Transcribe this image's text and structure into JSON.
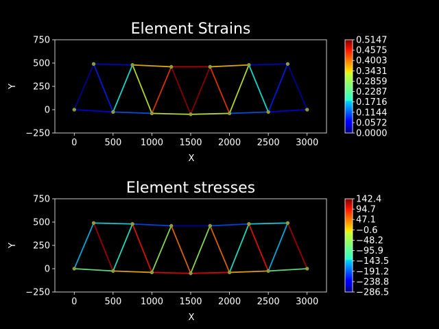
{
  "chart_data": [
    {
      "type": "line",
      "title": "Element Strains",
      "xlabel": "X",
      "ylabel": "Y",
      "xlim": [
        -250,
        3250
      ],
      "ylim": [
        -250,
        750
      ],
      "x_ticks": [
        "0",
        "500",
        "1000",
        "1500",
        "2000",
        "2500",
        "3000"
      ],
      "y_ticks": [
        "−250",
        "0",
        "250",
        "500",
        "750"
      ],
      "x_tick_values": [
        0,
        500,
        1000,
        1500,
        2000,
        2500,
        3000
      ],
      "y_tick_values": [
        -250,
        0,
        250,
        500,
        750
      ],
      "colormap": "jet",
      "colorbar_range": [
        0,
        0.5147
      ],
      "colorbar_ticks": [
        "0.5147",
        "0.4575",
        "0.4003",
        "0.3431",
        "0.2859",
        "0.2287",
        "0.1716",
        "0.1144",
        "0.0572",
        "0.0000"
      ],
      "nodes": [
        [
          0,
          0
        ],
        [
          500,
          -25
        ],
        [
          1000,
          -40
        ],
        [
          1500,
          -50
        ],
        [
          2000,
          -40
        ],
        [
          2500,
          -25
        ],
        [
          3000,
          0
        ],
        [
          250,
          490
        ],
        [
          750,
          480
        ],
        [
          1250,
          460
        ],
        [
          1750,
          460
        ],
        [
          2250,
          480
        ],
        [
          2750,
          490
        ]
      ],
      "elements": [
        {
          "n": [
            0,
            1
          ],
          "v": 0.06
        },
        {
          "n": [
            1,
            2
          ],
          "v": 0.11
        },
        {
          "n": [
            2,
            3
          ],
          "v": 0.3
        },
        {
          "n": [
            3,
            4
          ],
          "v": 0.3
        },
        {
          "n": [
            4,
            5
          ],
          "v": 0.11
        },
        {
          "n": [
            5,
            6
          ],
          "v": 0.06
        },
        {
          "n": [
            7,
            8
          ],
          "v": 0.05
        },
        {
          "n": [
            8,
            9
          ],
          "v": 0.35
        },
        {
          "n": [
            9,
            10
          ],
          "v": 0.48
        },
        {
          "n": [
            10,
            11
          ],
          "v": 0.35
        },
        {
          "n": [
            11,
            12
          ],
          "v": 0.05
        },
        {
          "n": [
            0,
            7
          ],
          "v": 0.02
        },
        {
          "n": [
            7,
            1
          ],
          "v": 0.08
        },
        {
          "n": [
            1,
            8
          ],
          "v": 0.2
        },
        {
          "n": [
            8,
            2
          ],
          "v": 0.3
        },
        {
          "n": [
            2,
            9
          ],
          "v": 0.42
        },
        {
          "n": [
            9,
            3
          ],
          "v": 0.5
        },
        {
          "n": [
            3,
            10
          ],
          "v": 0.5
        },
        {
          "n": [
            10,
            4
          ],
          "v": 0.42
        },
        {
          "n": [
            4,
            11
          ],
          "v": 0.3
        },
        {
          "n": [
            11,
            5
          ],
          "v": 0.2
        },
        {
          "n": [
            5,
            12
          ],
          "v": 0.08
        },
        {
          "n": [
            12,
            6
          ],
          "v": 0.02
        }
      ]
    },
    {
      "type": "line",
      "title": "Element stresses",
      "xlabel": "X",
      "ylabel": "Y",
      "xlim": [
        -250,
        3250
      ],
      "ylim": [
        -250,
        750
      ],
      "x_ticks": [
        "0",
        "500",
        "1000",
        "1500",
        "2000",
        "2500",
        "3000"
      ],
      "y_ticks": [
        "−250",
        "0",
        "250",
        "500",
        "750"
      ],
      "x_tick_values": [
        0,
        500,
        1000,
        1500,
        2000,
        2500,
        3000
      ],
      "y_tick_values": [
        -250,
        0,
        250,
        500,
        750
      ],
      "colormap": "jet",
      "colorbar_range": [
        -286.5,
        142.4
      ],
      "colorbar_ticks": [
        "142.4",
        "94.7",
        "47.1",
        "−0.6",
        "−48.2",
        "−95.9",
        "−143.5",
        "−191.2",
        "−238.8",
        "−286.5"
      ],
      "nodes": [
        [
          0,
          0
        ],
        [
          500,
          -25
        ],
        [
          1000,
          -40
        ],
        [
          1500,
          -50
        ],
        [
          2000,
          -40
        ],
        [
          2500,
          -25
        ],
        [
          3000,
          0
        ],
        [
          250,
          490
        ],
        [
          750,
          480
        ],
        [
          1250,
          460
        ],
        [
          1750,
          460
        ],
        [
          2250,
          480
        ],
        [
          2750,
          490
        ]
      ],
      "elements": [
        {
          "n": [
            0,
            1
          ],
          "v": -80
        },
        {
          "n": [
            1,
            2
          ],
          "v": 10
        },
        {
          "n": [
            2,
            3
          ],
          "v": 90
        },
        {
          "n": [
            3,
            4
          ],
          "v": 90
        },
        {
          "n": [
            4,
            5
          ],
          "v": 10
        },
        {
          "n": [
            5,
            6
          ],
          "v": -80
        },
        {
          "n": [
            7,
            8
          ],
          "v": -130
        },
        {
          "n": [
            8,
            9
          ],
          "v": -200
        },
        {
          "n": [
            9,
            10
          ],
          "v": -270
        },
        {
          "n": [
            10,
            11
          ],
          "v": -200
        },
        {
          "n": [
            11,
            12
          ],
          "v": -130
        },
        {
          "n": [
            0,
            7
          ],
          "v": -150
        },
        {
          "n": [
            7,
            1
          ],
          "v": 120
        },
        {
          "n": [
            1,
            8
          ],
          "v": -110
        },
        {
          "n": [
            8,
            2
          ],
          "v": 80
        },
        {
          "n": [
            2,
            9
          ],
          "v": -60
        },
        {
          "n": [
            9,
            3
          ],
          "v": 40
        },
        {
          "n": [
            3,
            10
          ],
          "v": -60
        },
        {
          "n": [
            10,
            4
          ],
          "v": 40
        },
        {
          "n": [
            4,
            11
          ],
          "v": -110
        },
        {
          "n": [
            11,
            5
          ],
          "v": 80
        },
        {
          "n": [
            5,
            12
          ],
          "v": -150
        },
        {
          "n": [
            12,
            6
          ],
          "v": 120
        }
      ]
    }
  ]
}
